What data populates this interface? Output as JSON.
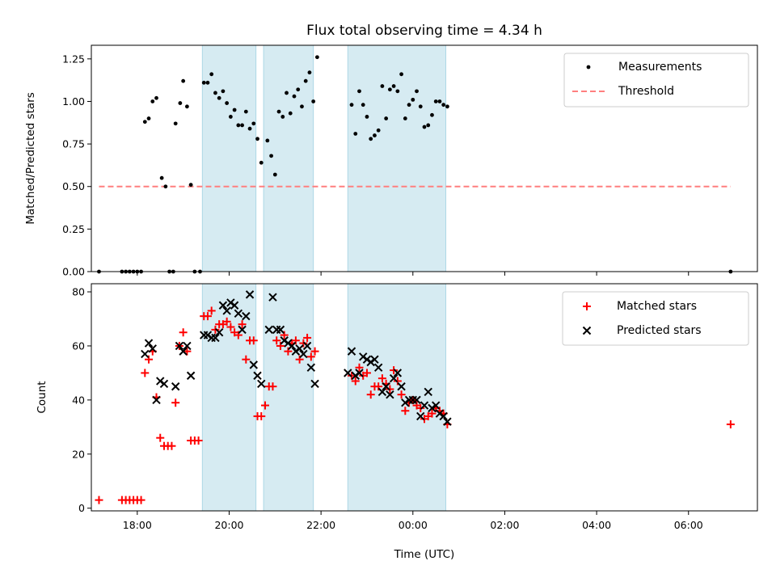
{
  "figure": {
    "title": "Flux total observing time = 4.34 h"
  },
  "colors": {
    "span_fill": "#add8e6",
    "measure": "#000000",
    "threshold": "#ff7f7f",
    "matched": "#ff0000",
    "predicted": "#000000"
  },
  "chart_data": [
    {
      "type": "scatter",
      "xaxis_type": "time",
      "xlim": [
        "17:00",
        "07:30"
      ],
      "ylim": [
        0,
        1.33
      ],
      "ylabel": "Matched/Predicted stars",
      "yticks": [
        "0.00",
        "0.25",
        "0.50",
        "0.75",
        "1.00",
        "1.25"
      ],
      "grid": false,
      "legend": "top-right",
      "observing_spans": [
        [
          "19:25",
          "20:35"
        ],
        [
          "20:45",
          "21:50"
        ],
        [
          "22:35",
          "00:43"
        ]
      ],
      "threshold": {
        "name": "Threshold",
        "y": 0.5,
        "x_start": "17:10",
        "x_end": "06:55"
      },
      "series": [
        {
          "name": "Measurements",
          "points": [
            [
              "17:10",
              0.0
            ],
            [
              "17:40",
              0.0
            ],
            [
              "17:45",
              0.0
            ],
            [
              "17:50",
              0.0
            ],
            [
              "17:55",
              0.0
            ],
            [
              "18:00",
              0.0
            ],
            [
              "18:05",
              0.0
            ],
            [
              "18:10",
              0.88
            ],
            [
              "18:15",
              0.9
            ],
            [
              "18:20",
              1.0
            ],
            [
              "18:25",
              1.02
            ],
            [
              "18:32",
              0.55
            ],
            [
              "18:37",
              0.5
            ],
            [
              "18:42",
              0.0
            ],
            [
              "18:47",
              0.0
            ],
            [
              "18:50",
              0.87
            ],
            [
              "18:56",
              0.99
            ],
            [
              "19:00",
              1.12
            ],
            [
              "19:05",
              0.97
            ],
            [
              "19:10",
              0.51
            ],
            [
              "19:15",
              0.0
            ],
            [
              "19:22",
              0.0
            ],
            [
              "19:27",
              1.11
            ],
            [
              "19:32",
              1.11
            ],
            [
              "19:37",
              1.16
            ],
            [
              "19:42",
              1.05
            ],
            [
              "19:47",
              1.02
            ],
            [
              "19:52",
              1.06
            ],
            [
              "19:57",
              0.99
            ],
            [
              "20:02",
              0.91
            ],
            [
              "20:07",
              0.95
            ],
            [
              "20:12",
              0.86
            ],
            [
              "20:17",
              0.86
            ],
            [
              "20:22",
              0.94
            ],
            [
              "20:27",
              0.84
            ],
            [
              "20:32",
              0.87
            ],
            [
              "20:37",
              0.78
            ],
            [
              "20:42",
              0.64
            ],
            [
              "20:50",
              0.77
            ],
            [
              "20:55",
              0.68
            ],
            [
              "21:00",
              0.57
            ],
            [
              "21:05",
              0.94
            ],
            [
              "21:10",
              0.91
            ],
            [
              "21:15",
              1.05
            ],
            [
              "21:20",
              0.93
            ],
            [
              "21:25",
              1.03
            ],
            [
              "21:30",
              1.07
            ],
            [
              "21:35",
              0.97
            ],
            [
              "21:40",
              1.12
            ],
            [
              "21:45",
              1.17
            ],
            [
              "21:50",
              1.0
            ],
            [
              "21:55",
              1.26
            ],
            [
              "22:40",
              0.98
            ],
            [
              "22:45",
              0.81
            ],
            [
              "22:50",
              1.06
            ],
            [
              "22:55",
              0.98
            ],
            [
              "23:00",
              0.91
            ],
            [
              "23:05",
              0.78
            ],
            [
              "23:10",
              0.8
            ],
            [
              "23:15",
              0.83
            ],
            [
              "23:20",
              1.09
            ],
            [
              "23:25",
              0.9
            ],
            [
              "23:30",
              1.07
            ],
            [
              "23:35",
              1.09
            ],
            [
              "23:40",
              1.06
            ],
            [
              "23:45",
              1.16
            ],
            [
              "23:50",
              0.9
            ],
            [
              "23:55",
              0.98
            ],
            [
              "00:00",
              1.01
            ],
            [
              "00:05",
              1.06
            ],
            [
              "00:10",
              0.97
            ],
            [
              "00:15",
              0.85
            ],
            [
              "00:20",
              0.86
            ],
            [
              "00:25",
              0.92
            ],
            [
              "00:30",
              1.0
            ],
            [
              "00:35",
              1.0
            ],
            [
              "00:40",
              0.98
            ],
            [
              "00:45",
              0.97
            ],
            [
              "06:55",
              0.0
            ]
          ]
        }
      ]
    },
    {
      "type": "scatter",
      "xaxis_type": "time",
      "xlim": [
        "17:00",
        "07:30"
      ],
      "ylim": [
        -1,
        83
      ],
      "xlabel": "Time (UTC)",
      "ylabel": "Count",
      "xticks": [
        "18:00",
        "20:00",
        "22:00",
        "00:00",
        "02:00",
        "04:00",
        "06:00"
      ],
      "yticks": [
        "0",
        "20",
        "40",
        "60",
        "80"
      ],
      "grid": false,
      "legend": "top-right",
      "observing_spans": [
        [
          "19:25",
          "20:35"
        ],
        [
          "20:45",
          "21:50"
        ],
        [
          "22:35",
          "00:43"
        ]
      ],
      "series": [
        {
          "name": "Matched stars",
          "marker": "plus",
          "points": [
            [
              "17:10",
              3
            ],
            [
              "17:40",
              3
            ],
            [
              "17:45",
              3
            ],
            [
              "17:50",
              3
            ],
            [
              "17:55",
              3
            ],
            [
              "18:00",
              3
            ],
            [
              "18:05",
              3
            ],
            [
              "18:10",
              50
            ],
            [
              "18:15",
              55
            ],
            [
              "18:20",
              58
            ],
            [
              "18:25",
              41
            ],
            [
              "18:30",
              26
            ],
            [
              "18:35",
              23
            ],
            [
              "18:40",
              23
            ],
            [
              "18:45",
              23
            ],
            [
              "18:50",
              39
            ],
            [
              "18:55",
              60
            ],
            [
              "19:00",
              65
            ],
            [
              "19:05",
              58
            ],
            [
              "19:10",
              25
            ],
            [
              "19:15",
              25
            ],
            [
              "19:20",
              25
            ],
            [
              "19:27",
              71
            ],
            [
              "19:32",
              71
            ],
            [
              "19:37",
              73
            ],
            [
              "19:42",
              66
            ],
            [
              "19:47",
              68
            ],
            [
              "19:52",
              68
            ],
            [
              "19:57",
              69
            ],
            [
              "20:02",
              67
            ],
            [
              "20:07",
              65
            ],
            [
              "20:12",
              64
            ],
            [
              "20:17",
              68
            ],
            [
              "20:22",
              55
            ],
            [
              "20:27",
              62
            ],
            [
              "20:32",
              62
            ],
            [
              "20:37",
              34
            ],
            [
              "20:42",
              34
            ],
            [
              "20:47",
              38
            ],
            [
              "20:52",
              45
            ],
            [
              "20:57",
              45
            ],
            [
              "21:02",
              62
            ],
            [
              "21:07",
              60
            ],
            [
              "21:12",
              64
            ],
            [
              "21:17",
              58
            ],
            [
              "21:22",
              61
            ],
            [
              "21:27",
              62
            ],
            [
              "21:32",
              55
            ],
            [
              "21:37",
              61
            ],
            [
              "21:42",
              63
            ],
            [
              "21:47",
              56
            ],
            [
              "21:52",
              58
            ],
            [
              "22:40",
              49
            ],
            [
              "22:45",
              47
            ],
            [
              "22:50",
              52
            ],
            [
              "22:55",
              49
            ],
            [
              "23:00",
              50
            ],
            [
              "23:05",
              42
            ],
            [
              "23:10",
              45
            ],
            [
              "23:15",
              45
            ],
            [
              "23:20",
              48
            ],
            [
              "23:25",
              46
            ],
            [
              "23:30",
              44
            ],
            [
              "23:35",
              51
            ],
            [
              "23:40",
              47
            ],
            [
              "23:45",
              42
            ],
            [
              "23:50",
              36
            ],
            [
              "23:55",
              39
            ],
            [
              "00:00",
              40
            ],
            [
              "00:05",
              38
            ],
            [
              "00:10",
              37
            ],
            [
              "00:15",
              33
            ],
            [
              "00:20",
              34
            ],
            [
              "00:25",
              35
            ],
            [
              "00:30",
              37
            ],
            [
              "00:35",
              36
            ],
            [
              "00:40",
              35
            ],
            [
              "00:45",
              31
            ],
            [
              "06:55",
              31
            ]
          ]
        },
        {
          "name": "Predicted stars",
          "marker": "x",
          "points": [
            [
              "18:10",
              57
            ],
            [
              "18:15",
              61
            ],
            [
              "18:20",
              59
            ],
            [
              "18:25",
              40
            ],
            [
              "18:30",
              47
            ],
            [
              "18:35",
              46
            ],
            [
              "18:50",
              45
            ],
            [
              "18:55",
              60
            ],
            [
              "19:00",
              58
            ],
            [
              "19:05",
              60
            ],
            [
              "19:10",
              49
            ],
            [
              "19:27",
              64
            ],
            [
              "19:32",
              64
            ],
            [
              "19:37",
              63
            ],
            [
              "19:42",
              63
            ],
            [
              "19:47",
              65
            ],
            [
              "19:52",
              75
            ],
            [
              "19:57",
              73
            ],
            [
              "20:02",
              76
            ],
            [
              "20:07",
              75
            ],
            [
              "20:12",
              72
            ],
            [
              "20:17",
              66
            ],
            [
              "20:22",
              71
            ],
            [
              "20:27",
              79
            ],
            [
              "20:32",
              53
            ],
            [
              "20:37",
              49
            ],
            [
              "20:42",
              46
            ],
            [
              "20:52",
              66
            ],
            [
              "20:57",
              78
            ],
            [
              "21:02",
              66
            ],
            [
              "21:07",
              66
            ],
            [
              "21:12",
              62
            ],
            [
              "21:17",
              61
            ],
            [
              "21:22",
              60
            ],
            [
              "21:27",
              58
            ],
            [
              "21:32",
              59
            ],
            [
              "21:37",
              57
            ],
            [
              "21:42",
              60
            ],
            [
              "21:47",
              52
            ],
            [
              "21:52",
              46
            ],
            [
              "22:35",
              50
            ],
            [
              "22:40",
              58
            ],
            [
              "22:45",
              49
            ],
            [
              "22:50",
              50
            ],
            [
              "22:55",
              56
            ],
            [
              "23:00",
              55
            ],
            [
              "23:05",
              54
            ],
            [
              "23:10",
              55
            ],
            [
              "23:15",
              52
            ],
            [
              "23:20",
              43
            ],
            [
              "23:25",
              45
            ],
            [
              "23:30",
              42
            ],
            [
              "23:35",
              48
            ],
            [
              "23:40",
              50
            ],
            [
              "23:45",
              45
            ],
            [
              "23:50",
              39
            ],
            [
              "23:55",
              40
            ],
            [
              "00:00",
              40
            ],
            [
              "00:05",
              40
            ],
            [
              "00:10",
              34
            ],
            [
              "00:15",
              38
            ],
            [
              "00:20",
              43
            ],
            [
              "00:25",
              37
            ],
            [
              "00:30",
              38
            ],
            [
              "00:35",
              35
            ],
            [
              "00:40",
              34
            ],
            [
              "00:45",
              32
            ]
          ]
        }
      ]
    }
  ]
}
